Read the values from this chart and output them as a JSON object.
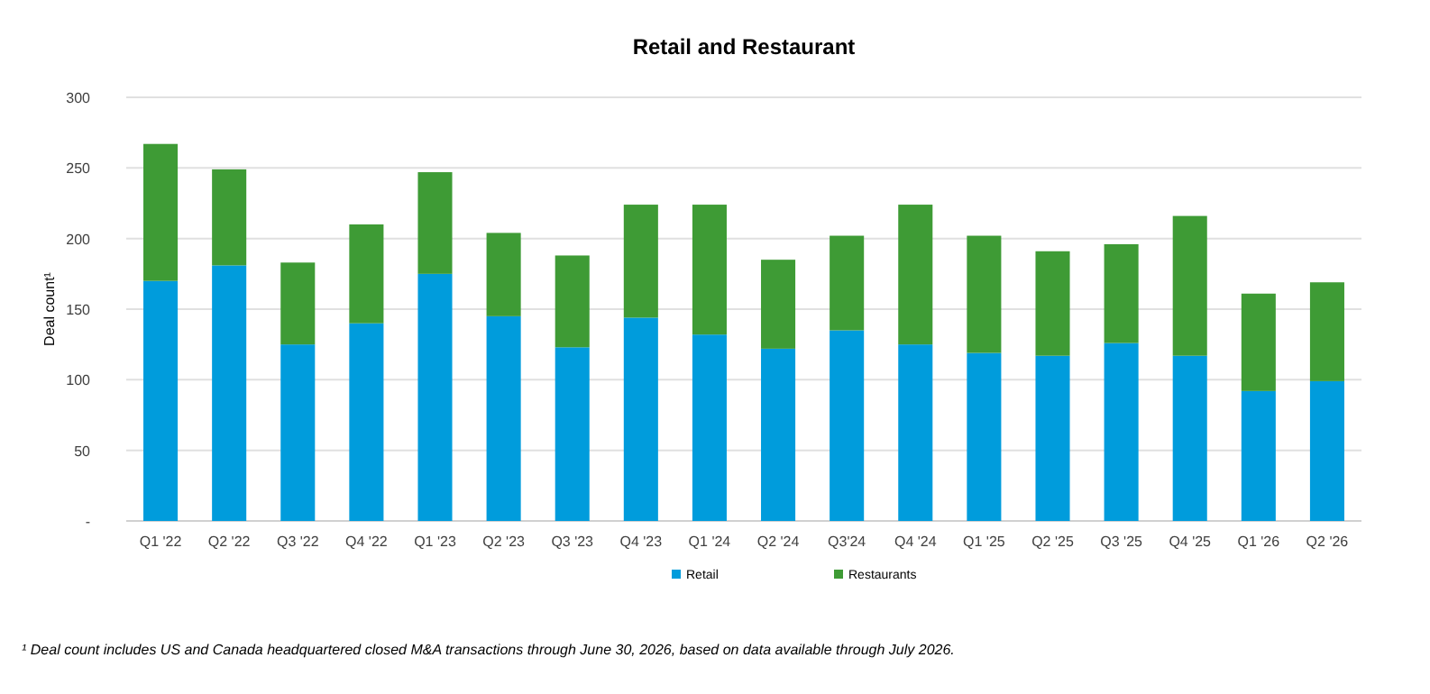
{
  "chart_data": {
    "type": "bar",
    "title": "Retail and Restaurant",
    "ylabel": "Deal count¹",
    "stacked": true,
    "categories": [
      "Q1 '22",
      "Q2 '22",
      "Q3 '22",
      "Q4 '22",
      "Q1 '23",
      "Q2 '23",
      "Q3 '23",
      "Q4 '23",
      "Q1 '24",
      "Q2 '24",
      "Q3'24",
      "Q4 '24",
      "Q1 '25",
      "Q2 '25",
      "Q3 '25",
      "Q4 '25",
      "Q1 '26",
      "Q2 '26"
    ],
    "series": [
      {
        "name": "Retail",
        "color": "#009cdc",
        "values": [
          170,
          181,
          125,
          140,
          175,
          145,
          123,
          144,
          132,
          122,
          135,
          125,
          119,
          117,
          126,
          117,
          92,
          99
        ]
      },
      {
        "name": "Restaurants",
        "color": "#3e9b35",
        "values": [
          97,
          68,
          58,
          70,
          72,
          59,
          65,
          80,
          92,
          63,
          67,
          99,
          83,
          74,
          70,
          99,
          69,
          70
        ]
      }
    ],
    "ylim": [
      0,
      300
    ],
    "yticks": [
      {
        "value": 0,
        "label": "-"
      },
      50,
      100,
      150,
      200,
      250,
      300
    ],
    "grid": "y",
    "legend": "bottom",
    "annotations": [
      "¹ Deal count includes US and Canada headquartered closed M&A transactions through June 30, 2026, based on data available through July 2026."
    ]
  }
}
